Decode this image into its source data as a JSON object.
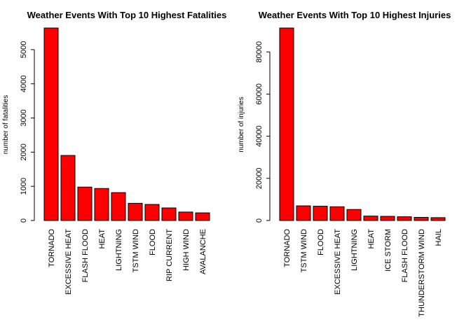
{
  "chart_data": [
    {
      "type": "bar",
      "title": "Weather Events With Top 10 Highest Fatalities",
      "xlabel": "",
      "ylabel": "number of fatalities",
      "categories": [
        "TORNADO",
        "EXCESSIVE HEAT",
        "FLASH FLOOD",
        "HEAT",
        "LIGHTNING",
        "TSTM WIND",
        "FLOOD",
        "RIP CURRENT",
        "HIGH WIND",
        "AVALANCHE"
      ],
      "values": [
        5633,
        1903,
        978,
        937,
        816,
        504,
        470,
        368,
        248,
        224
      ],
      "ylim": [
        0,
        5633
      ],
      "yticks": [
        0,
        1000,
        2000,
        3000,
        4000,
        5000
      ],
      "bar_color": "#ff0000",
      "grid": false,
      "legend": "none"
    },
    {
      "type": "bar",
      "title": "Weather Events With Top 10 Highest Injuries",
      "xlabel": "",
      "ylabel": "number of injuries",
      "categories": [
        "TORNADO",
        "TSTM WIND",
        "FLOOD",
        "EXCESSIVE HEAT",
        "LIGHTNING",
        "HEAT",
        "ICE STORM",
        "FLASH FLOOD",
        "THUNDERSTORM WIND",
        "HAIL"
      ],
      "values": [
        91346,
        6957,
        6789,
        6525,
        5230,
        2100,
        1975,
        1777,
        1488,
        1361
      ],
      "ylim": [
        0,
        91346
      ],
      "yticks": [
        0,
        20000,
        40000,
        60000,
        80000
      ],
      "bar_color": "#ff0000",
      "grid": false,
      "legend": "none"
    }
  ]
}
